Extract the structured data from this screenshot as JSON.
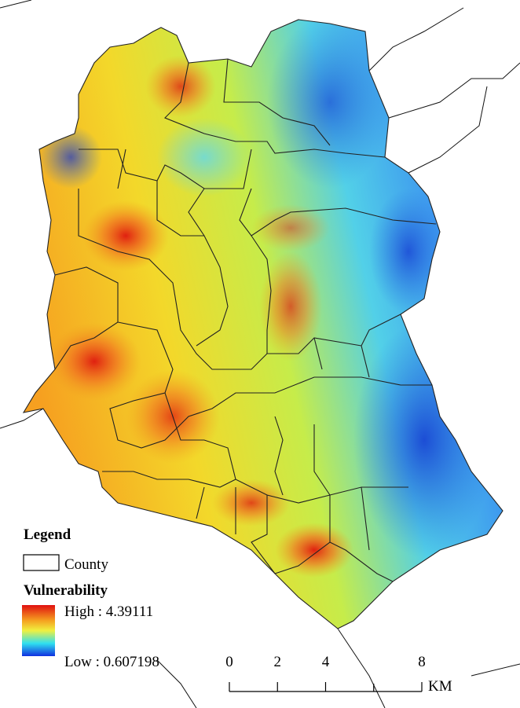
{
  "legend": {
    "title": "Legend",
    "county_label": "County",
    "layer_title": "Vulnerability",
    "high_label": "High : 4.39111",
    "low_label": "Low : 0.607198"
  },
  "scale_bar": {
    "ticks": [
      0,
      2,
      4,
      8
    ],
    "unit": "KM"
  }
}
